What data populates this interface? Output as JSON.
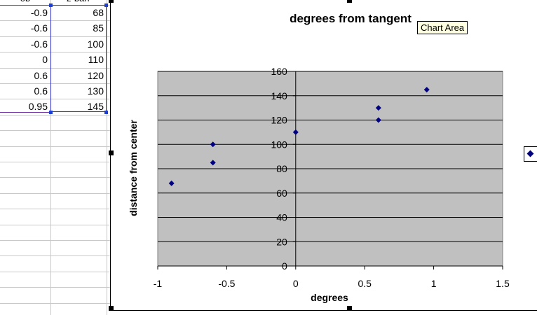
{
  "sheet": {
    "col_a_header": "ob",
    "col_b_header": "z-barr",
    "rows": [
      {
        "a": "-0.9",
        "b": "68"
      },
      {
        "a": "-0.6",
        "b": "85"
      },
      {
        "a": "-0.6",
        "b": "100"
      },
      {
        "a": "0",
        "b": "110"
      },
      {
        "a": "0.6",
        "b": "120"
      },
      {
        "a": "0.6",
        "b": "130"
      },
      {
        "a": "0.95",
        "b": "145"
      }
    ]
  },
  "chart": {
    "tooltip": "Chart Area"
  },
  "chart_data": {
    "type": "scatter",
    "title": "degrees from tangent",
    "xlabel": "degrees",
    "ylabel": "distance from center",
    "xlim": [
      -1,
      1.5
    ],
    "ylim": [
      0,
      160
    ],
    "x_ticks": [
      "-1",
      "-0.5",
      "0",
      "0.5",
      "1",
      "1.5"
    ],
    "y_ticks": [
      "0",
      "20",
      "40",
      "60",
      "80",
      "100",
      "120",
      "140",
      "160"
    ],
    "grid": true,
    "plot_background": "#c0c0c0",
    "marker_color": "#000080",
    "legend_placement": "right",
    "series": [
      {
        "x": [
          -0.9,
          -0.6,
          -0.6,
          0,
          0.6,
          0.6,
          0.95
        ],
        "y": [
          68,
          85,
          100,
          110,
          120,
          130,
          145
        ]
      }
    ]
  }
}
